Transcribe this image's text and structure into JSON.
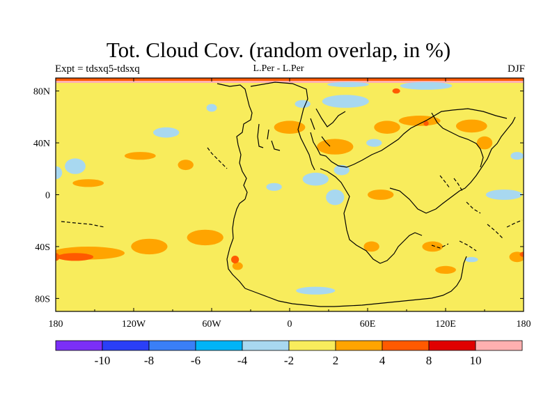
{
  "title": "Tot. Cloud Cov. (random overlap, in %)",
  "subtitle_left": "Expt = tdsxq5-tdsxq",
  "subtitle_center": "L.Per - L.Per",
  "subtitle_right": "DJF",
  "chart_data": {
    "type": "filled-contour-map",
    "variable": "Tot. Cloud Cov. (random overlap, in %)",
    "experiment": "tdsxq5-tdsxq",
    "comparison": "L.Per - L.Per",
    "season": "DJF",
    "projection": "cylindrical-equidistant",
    "lon_range": [
      -180,
      180
    ],
    "lat_range": [
      -90,
      90
    ],
    "x_ticks": [
      {
        "value": -180,
        "label": "180"
      },
      {
        "value": -120,
        "label": "120W"
      },
      {
        "value": -60,
        "label": "60W"
      },
      {
        "value": 0,
        "label": "0"
      },
      {
        "value": 60,
        "label": "60E"
      },
      {
        "value": 120,
        "label": "120E"
      },
      {
        "value": 180,
        "label": "180"
      }
    ],
    "y_ticks": [
      {
        "value": 80,
        "label": "80N"
      },
      {
        "value": 40,
        "label": "40N"
      },
      {
        "value": 0,
        "label": "0"
      },
      {
        "value": -40,
        "label": "40S"
      },
      {
        "value": -80,
        "label": "80S"
      }
    ],
    "background_level": "-2 to 2",
    "colorbar": {
      "bins": [
        "#7b2ff7",
        "#2a3ff7",
        "#3a7ff7",
        "#00b4f7",
        "#a8d8f0",
        "#f8ec5c",
        "#ffa400",
        "#ff5a00",
        "#e00000",
        "#ffb0b0"
      ],
      "labels": [
        "-10",
        "-8",
        "-6",
        "-4",
        "-2",
        "2",
        "4",
        "8",
        "10"
      ]
    },
    "regions": [
      {
        "level": "-4 to -2",
        "lon": -165,
        "lat": 22,
        "rx": 8,
        "ry": 6
      },
      {
        "level": "-4 to -2",
        "lon": -180,
        "lat": 17,
        "rx": 5,
        "ry": 5
      },
      {
        "level": "-4 to -2",
        "lon": -95,
        "lat": 48,
        "rx": 10,
        "ry": 4
      },
      {
        "level": "-4 to -2",
        "lon": -60,
        "lat": 67,
        "rx": 4,
        "ry": 3
      },
      {
        "level": "-4 to -2",
        "lon": -12,
        "lat": 6,
        "rx": 6,
        "ry": 3
      },
      {
        "level": "-4 to -2",
        "lon": 20,
        "lat": 12,
        "rx": 10,
        "ry": 5
      },
      {
        "level": "-4 to -2",
        "lon": 35,
        "lat": -2,
        "rx": 7,
        "ry": 6
      },
      {
        "level": "-4 to -2",
        "lon": 40,
        "lat": 19,
        "rx": 6,
        "ry": 4
      },
      {
        "level": "-4 to -2",
        "lon": 43,
        "lat": 72,
        "rx": 18,
        "ry": 5
      },
      {
        "level": "-4 to -2",
        "lon": 105,
        "lat": 84,
        "rx": 20,
        "ry": 3
      },
      {
        "level": "-4 to -2",
        "lon": 45,
        "lat": 85,
        "rx": 16,
        "ry": 2
      },
      {
        "level": "-4 to -2",
        "lon": 10,
        "lat": 70,
        "rx": 6,
        "ry": 3
      },
      {
        "level": "-4 to -2",
        "lon": 165,
        "lat": 0,
        "rx": 14,
        "ry": 4
      },
      {
        "level": "-4 to -2",
        "lon": 175,
        "lat": 30,
        "rx": 5,
        "ry": 3
      },
      {
        "level": "-4 to -2",
        "lon": 20,
        "lat": -74,
        "rx": 15,
        "ry": 3
      },
      {
        "level": "-4 to -2",
        "lon": 65,
        "lat": 40,
        "rx": 6,
        "ry": 3
      },
      {
        "level": "-4 to -2",
        "lon": 140,
        "lat": -50,
        "rx": 5,
        "ry": 2
      },
      {
        "level": "2 to 4",
        "lon": -155,
        "lat": -45,
        "rx": 28,
        "ry": 5
      },
      {
        "level": "2 to 4",
        "lon": -108,
        "lat": -40,
        "rx": 14,
        "ry": 6
      },
      {
        "level": "2 to 4",
        "lon": -65,
        "lat": -33,
        "rx": 14,
        "ry": 6
      },
      {
        "level": "2 to 4",
        "lon": -155,
        "lat": 9,
        "rx": 12,
        "ry": 3
      },
      {
        "level": "2 to 4",
        "lon": -115,
        "lat": 30,
        "rx": 12,
        "ry": 3
      },
      {
        "level": "2 to 4",
        "lon": -80,
        "lat": 23,
        "rx": 6,
        "ry": 4
      },
      {
        "level": "2 to 4",
        "lon": 0,
        "lat": 52,
        "rx": 12,
        "ry": 5
      },
      {
        "level": "2 to 4",
        "lon": 35,
        "lat": 37,
        "rx": 14,
        "ry": 6
      },
      {
        "level": "2 to 4",
        "lon": 75,
        "lat": 52,
        "rx": 10,
        "ry": 5
      },
      {
        "level": "2 to 4",
        "lon": 100,
        "lat": 57,
        "rx": 16,
        "ry": 4
      },
      {
        "level": "2 to 4",
        "lon": 140,
        "lat": 53,
        "rx": 12,
        "ry": 5
      },
      {
        "level": "2 to 4",
        "lon": 150,
        "lat": 40,
        "rx": 6,
        "ry": 5
      },
      {
        "level": "2 to 4",
        "lon": 70,
        "lat": 0,
        "rx": 10,
        "ry": 4
      },
      {
        "level": "2 to 4",
        "lon": 63,
        "lat": -40,
        "rx": 6,
        "ry": 4
      },
      {
        "level": "2 to 4",
        "lon": 110,
        "lat": -40,
        "rx": 8,
        "ry": 4
      },
      {
        "level": "2 to 4",
        "lon": 120,
        "lat": -58,
        "rx": 8,
        "ry": 3
      },
      {
        "level": "2 to 4",
        "lon": -40,
        "lat": -55,
        "rx": 4,
        "ry": 3
      },
      {
        "level": "2 to 4",
        "lon": 175,
        "lat": -48,
        "rx": 6,
        "ry": 4
      },
      {
        "level": "4 to 8",
        "lon": -165,
        "lat": -48,
        "rx": 14,
        "ry": 3
      },
      {
        "level": "4 to 8",
        "lon": -180,
        "lat": -48,
        "rx": 3,
        "ry": 3
      },
      {
        "level": "4 to 8",
        "lon": -42,
        "lat": -50,
        "rx": 3,
        "ry": 3
      },
      {
        "level": "4 to 8",
        "lon": 180,
        "lat": -46,
        "rx": 3,
        "ry": 2
      },
      {
        "level": "4 to 8",
        "lon": 82,
        "lat": 80,
        "rx": 3,
        "ry": 2
      },
      {
        "level": "4 to 8",
        "lon": 105,
        "lat": 55,
        "rx": 2,
        "ry": 2
      }
    ]
  }
}
